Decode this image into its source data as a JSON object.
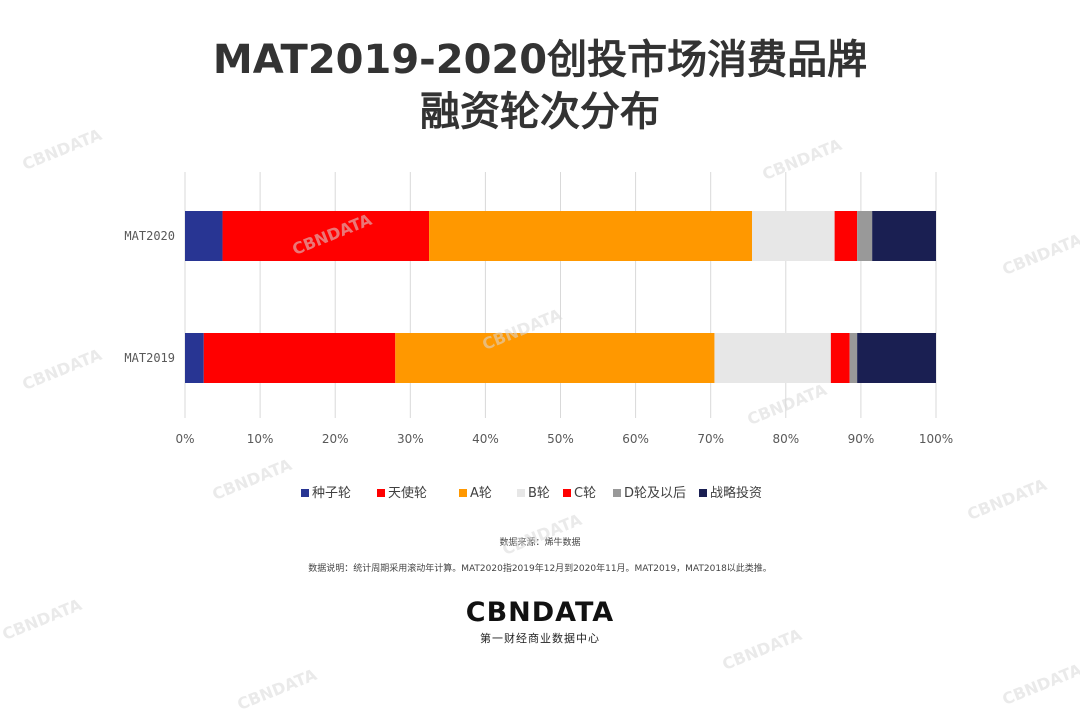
{
  "title": {
    "line1": "MAT2019-2020创投市场消费品牌",
    "line2": "融资轮次分布"
  },
  "chart_data": {
    "type": "bar",
    "orientation": "horizontal",
    "stacked": true,
    "categories": [
      "MAT2020",
      "MAT2019"
    ],
    "series": [
      {
        "name": "种子轮",
        "color": "#283593",
        "values": [
          5.0,
          2.5
        ]
      },
      {
        "name": "天使轮",
        "color": "#ff0000",
        "values": [
          27.5,
          25.5
        ]
      },
      {
        "name": "A轮",
        "color": "#ff9800",
        "values": [
          43.0,
          42.5
        ]
      },
      {
        "name": "B轮",
        "color": "#e7e7e7",
        "values": [
          11.0,
          15.5
        ]
      },
      {
        "name": "C轮",
        "color": "#ff0000",
        "values": [
          3.0,
          2.5
        ]
      },
      {
        "name": "D轮及以后",
        "color": "#999999",
        "values": [
          2.0,
          1.0
        ]
      },
      {
        "name": "战略投资",
        "color": "#1a1f52",
        "values": [
          8.5,
          10.5
        ]
      }
    ],
    "xlim": [
      0,
      100
    ],
    "xticks": [
      "0%",
      "10%",
      "20%",
      "30%",
      "40%",
      "50%",
      "60%",
      "70%",
      "80%",
      "90%",
      "100%"
    ],
    "grid": true,
    "legend": "bottom"
  },
  "notes": {
    "source": "数据来源：烯牛数据",
    "description": "数据说明：统计周期采用滚动年计算。MAT2020指2019年12月到2020年11月。MAT2019，MAT2018以此类推。"
  },
  "brand": {
    "logo": "CBNDATA",
    "subtitle": "第一财经商业数据中心"
  },
  "watermark": {
    "text": "CBNDATA"
  }
}
